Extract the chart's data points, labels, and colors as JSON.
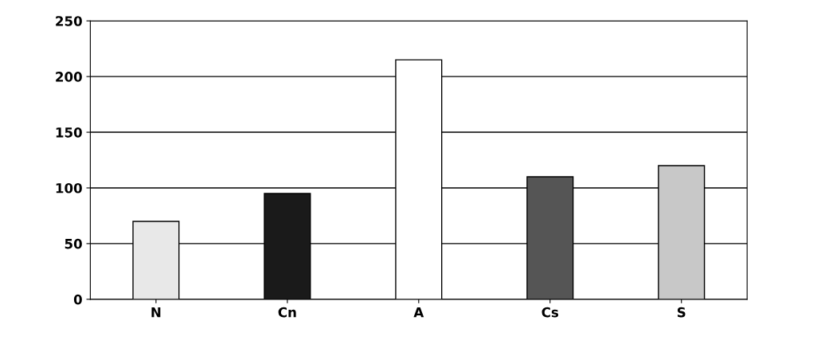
{
  "chart_data": {
    "type": "bar",
    "categories": [
      "N",
      "Cn",
      "A",
      "Cs",
      "S"
    ],
    "values": [
      70,
      95,
      215,
      110,
      120
    ],
    "colors": [
      "#e8e8e8",
      "#1a1a1a",
      "#ffffff",
      "#555555",
      "#c8c8c8"
    ],
    "ylim": [
      0,
      250
    ],
    "yticks": [
      0,
      50,
      100,
      150,
      200,
      250
    ],
    "grid": "y"
  }
}
